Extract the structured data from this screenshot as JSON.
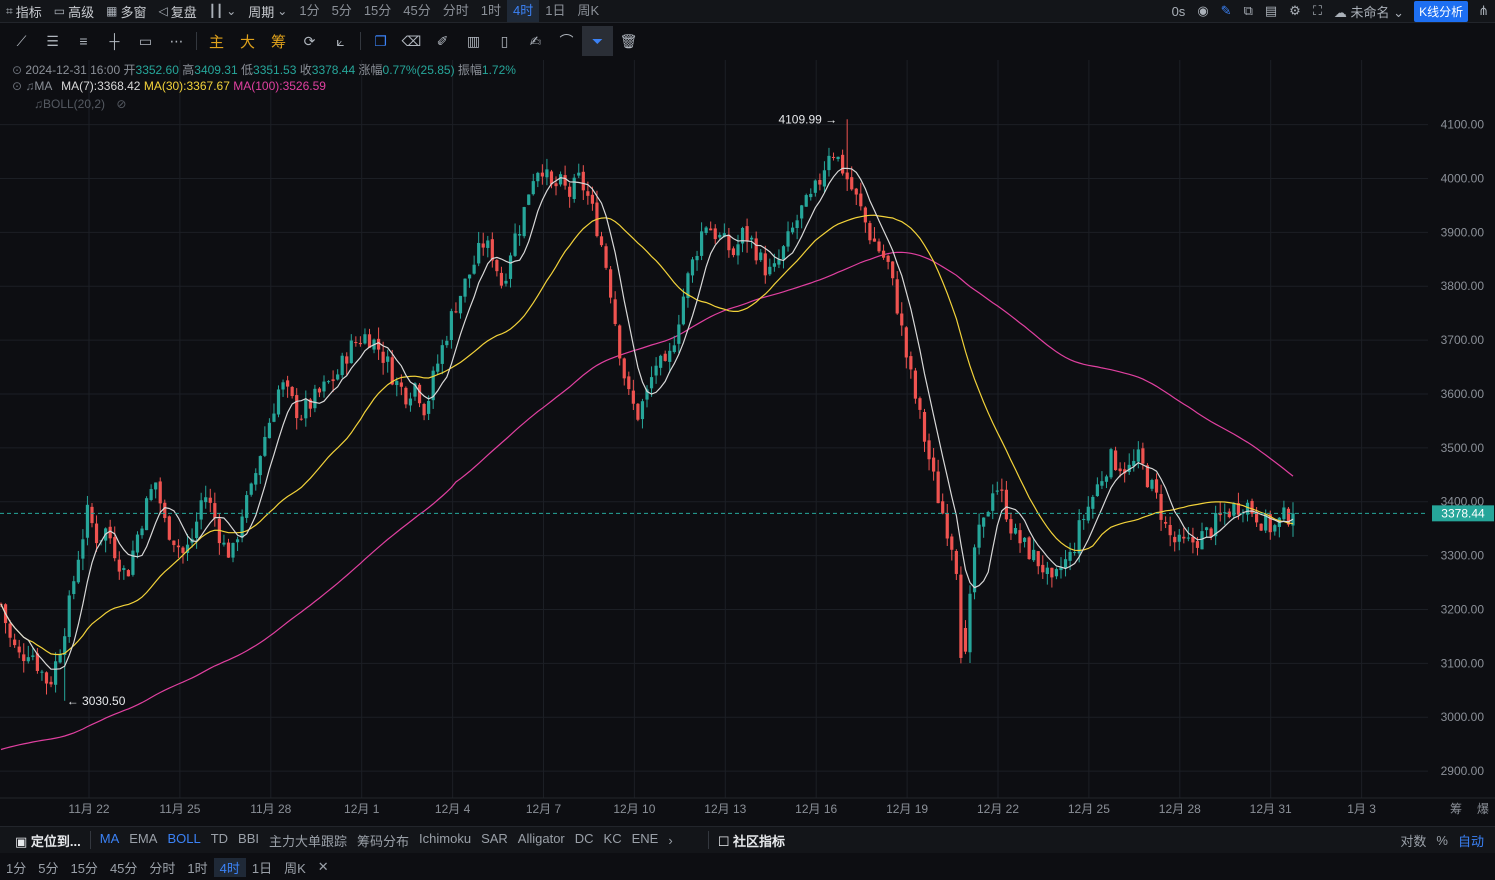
{
  "topbar": {
    "indicators": "指标",
    "advanced": "高级",
    "multi_window": "多窗",
    "replay": "复盘",
    "period_label": "周期",
    "intervals": [
      "1分",
      "5分",
      "15分",
      "45分",
      "分时",
      "1时",
      "4时",
      "1日",
      "周K"
    ],
    "active_interval": "4时",
    "timer": "0s",
    "layout_name": "未命名",
    "kline_btn": "K线分析"
  },
  "drawing_tools": {
    "main": "主",
    "big": "大",
    "chips": "筹"
  },
  "info": {
    "datetime": "2024-12-31 16:00",
    "open_label": "开",
    "open": "3352.60",
    "high_label": "高",
    "high": "3409.31",
    "low_label": "低",
    "low": "3351.53",
    "close_label": "收",
    "close": "3378.44",
    "change_label": "涨幅",
    "change": "0.77%(25.85)",
    "amplitude_label": "振幅",
    "amplitude": "1.72%",
    "ma_label": "MA",
    "ma7": "MA(7):3368.42",
    "ma30": "MA(30):3367.67",
    "ma100": "MA(100):3526.59",
    "boll": "BOLL(20,2)"
  },
  "colors": {
    "up": "#26a69a",
    "down": "#ef5350",
    "ma7": "#d8d8d8",
    "ma30": "#f2d23a",
    "ma100": "#e040a0",
    "accent": "#1d6ff2"
  },
  "chart_data": {
    "type": "candlestick",
    "y_ticks": [
      "4100.00",
      "4000.00",
      "3900.00",
      "3800.00",
      "3700.00",
      "3600.00",
      "3500.00",
      "3400.00",
      "3300.00",
      "3200.00",
      "3100.00",
      "3000.00",
      "2900.00"
    ],
    "ylim": [
      2850,
      4220
    ],
    "x_ticks": [
      "11月 22",
      "11月 25",
      "11月 28",
      "12月 1",
      "12月 4",
      "12月 7",
      "12月 10",
      "12月 13",
      "12月 16",
      "12月 19",
      "12月 22",
      "12月 25",
      "12月 28",
      "12月 31",
      "1月 3"
    ],
    "last_price": "3378.44",
    "high_marker": "4109.99",
    "low_marker": "3030.50",
    "close_path": [
      3210,
      3140,
      3110,
      3130,
      3090,
      3060,
      3120,
      3200,
      3300,
      3380,
      3330,
      3350,
      3300,
      3260,
      3330,
      3390,
      3440,
      3360,
      3330,
      3300,
      3340,
      3420,
      3380,
      3320,
      3300,
      3380,
      3420,
      3500,
      3560,
      3620,
      3590,
      3560,
      3580,
      3600,
      3620,
      3640,
      3680,
      3700,
      3710,
      3690,
      3660,
      3620,
      3600,
      3620,
      3570,
      3640,
      3700,
      3760,
      3800,
      3840,
      3880,
      3860,
      3800,
      3880,
      3920,
      4000,
      4030,
      3980,
      3990,
      3970,
      4000,
      3960,
      3900,
      3820,
      3700,
      3600,
      3560,
      3600,
      3660,
      3640,
      3720,
      3800,
      3860,
      3920,
      3900,
      3880,
      3860,
      3900,
      3880,
      3840,
      3820,
      3860,
      3900,
      3940,
      3960,
      4000,
      4060,
      4030,
      3990,
      3950,
      3900,
      3870,
      3840,
      3760,
      3660,
      3580,
      3500,
      3420,
      3360,
      3300,
      3100,
      3320,
      3360,
      3440,
      3400,
      3340,
      3320,
      3300,
      3280,
      3240,
      3280,
      3300,
      3360,
      3400,
      3440,
      3480,
      3470,
      3460,
      3480,
      3440,
      3400,
      3340,
      3320,
      3320,
      3330,
      3340,
      3360,
      3380,
      3390,
      3400,
      3380,
      3360,
      3350,
      3370,
      3380
    ]
  },
  "bottombar": {
    "locate": "定位到...",
    "indicators": [
      "MA",
      "EMA",
      "BOLL",
      "TD",
      "BBI",
      "主力大单跟踪",
      "筹码分布",
      "Ichimoku",
      "SAR",
      "Alligator",
      "DC",
      "KC",
      "ENE"
    ],
    "active": [
      "MA",
      "BOLL"
    ],
    "community": "社区指标",
    "log": "对数",
    "percent": "%",
    "auto": "自动",
    "chips_short": "筹",
    "burst": "爆"
  },
  "bottombar2": {
    "intervals": [
      "1分",
      "5分",
      "15分",
      "45分",
      "分时",
      "1时",
      "4时",
      "1日",
      "周K"
    ],
    "active": "4时"
  }
}
